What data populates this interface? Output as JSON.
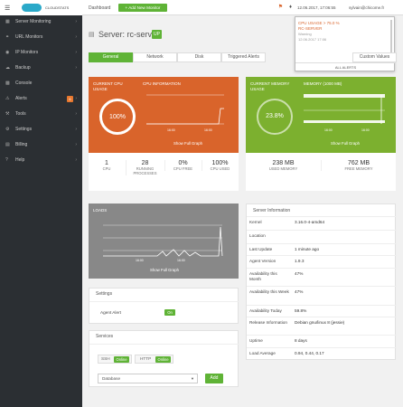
{
  "topbar": {
    "logo": "CLOUDSTATS",
    "breadcrumb": "Dashboard",
    "add_monitor": "+ Add New Monitor",
    "time": "12.06.2017, 17:06:55",
    "user": "sylvain@chicome.fr"
  },
  "alert_dropdown": {
    "line1": "CPU USAGE > 75.0 %",
    "line2": "RC-SERVER",
    "line3": "Warning",
    "line4": "12.06.2017 17:06",
    "footer": "ALL ALERTS"
  },
  "sidebar": {
    "items": [
      {
        "label": "Server Monitoring",
        "icon": "server-icon"
      },
      {
        "label": "URL Monitors",
        "icon": "link-icon"
      },
      {
        "label": "IP Monitors",
        "icon": "ip-icon"
      },
      {
        "label": "Backup",
        "icon": "backup-icon"
      },
      {
        "label": "Console",
        "icon": "console-icon"
      },
      {
        "label": "Alerts",
        "icon": "alert-icon",
        "badge": "6"
      },
      {
        "label": "Tools",
        "icon": "tools-icon"
      },
      {
        "label": "Settings",
        "icon": "gear-icon"
      },
      {
        "label": "Billing",
        "icon": "billing-icon"
      },
      {
        "label": "Help",
        "icon": "help-icon"
      }
    ]
  },
  "server": {
    "title": "Server: rc-server",
    "status": "UP"
  },
  "tabs": [
    "General",
    "Network",
    "Disk",
    "Triggered Alerts",
    "Custom Values"
  ],
  "cpu": {
    "current_label": "CURRENT CPU USAGE",
    "info_label": "CPU INFORMATION",
    "gauge": "100%",
    "axis": [
      "16:00",
      "16:00"
    ],
    "show_graph": "Show Full Graph",
    "stats": [
      {
        "value": "1",
        "label": "CPU"
      },
      {
        "value": "28",
        "label": "RUNNING PROCESSES"
      },
      {
        "value": "0%",
        "label": "CPU FREE"
      },
      {
        "value": "100%",
        "label": "CPU USED"
      }
    ]
  },
  "memory": {
    "current_label": "CURRENT MEMORY USAGE",
    "info_label": "MEMORY (1000 MB)",
    "gauge": "23.8%",
    "axis": [
      "16:00",
      "16:00"
    ],
    "show_graph": "Show Full Graph",
    "stats": [
      {
        "value": "238 MB",
        "label": "USED MEMORY"
      },
      {
        "value": "762 MB",
        "label": "FREE MEMORY"
      }
    ]
  },
  "loads": {
    "label": "LOADS",
    "axis": [
      "16:00",
      "16:00"
    ],
    "show_graph": "Show Full Graph"
  },
  "server_info": {
    "title": "Server Information",
    "rows": [
      {
        "k": "Kernel",
        "v": "3.16.0-4-amd64"
      },
      {
        "k": "Location",
        "v": ""
      },
      {
        "k": "Last Update",
        "v": "1 minute ago"
      },
      {
        "k": "Agent Version",
        "v": "1.9.3"
      },
      {
        "k": "Availability this Month",
        "v": "47%"
      },
      {
        "k": "Availability this Week",
        "v": "47%"
      },
      {
        "k": "Availability Today",
        "v": "59.8%"
      },
      {
        "k": "Release Information",
        "v": "Debian gnu/linux 8 (jessie)"
      },
      {
        "k": "Uptime",
        "v": "8 days"
      },
      {
        "k": "Load Average",
        "v": "0.94, 0.44, 0.17"
      }
    ]
  },
  "settings": {
    "title": "Settings",
    "agent_alert": "Agent Alert",
    "toggle": "On"
  },
  "services": {
    "title": "Services",
    "items": [
      {
        "name": "SSH",
        "status": "Online"
      },
      {
        "name": "HTTP",
        "status": "Online"
      }
    ],
    "select_value": "Database",
    "add_label": "Add"
  },
  "colors": {
    "accent": "#5fb336",
    "cpu": "#d9642b",
    "memory": "#7cb02f",
    "sidebar": "#2b2f33"
  }
}
